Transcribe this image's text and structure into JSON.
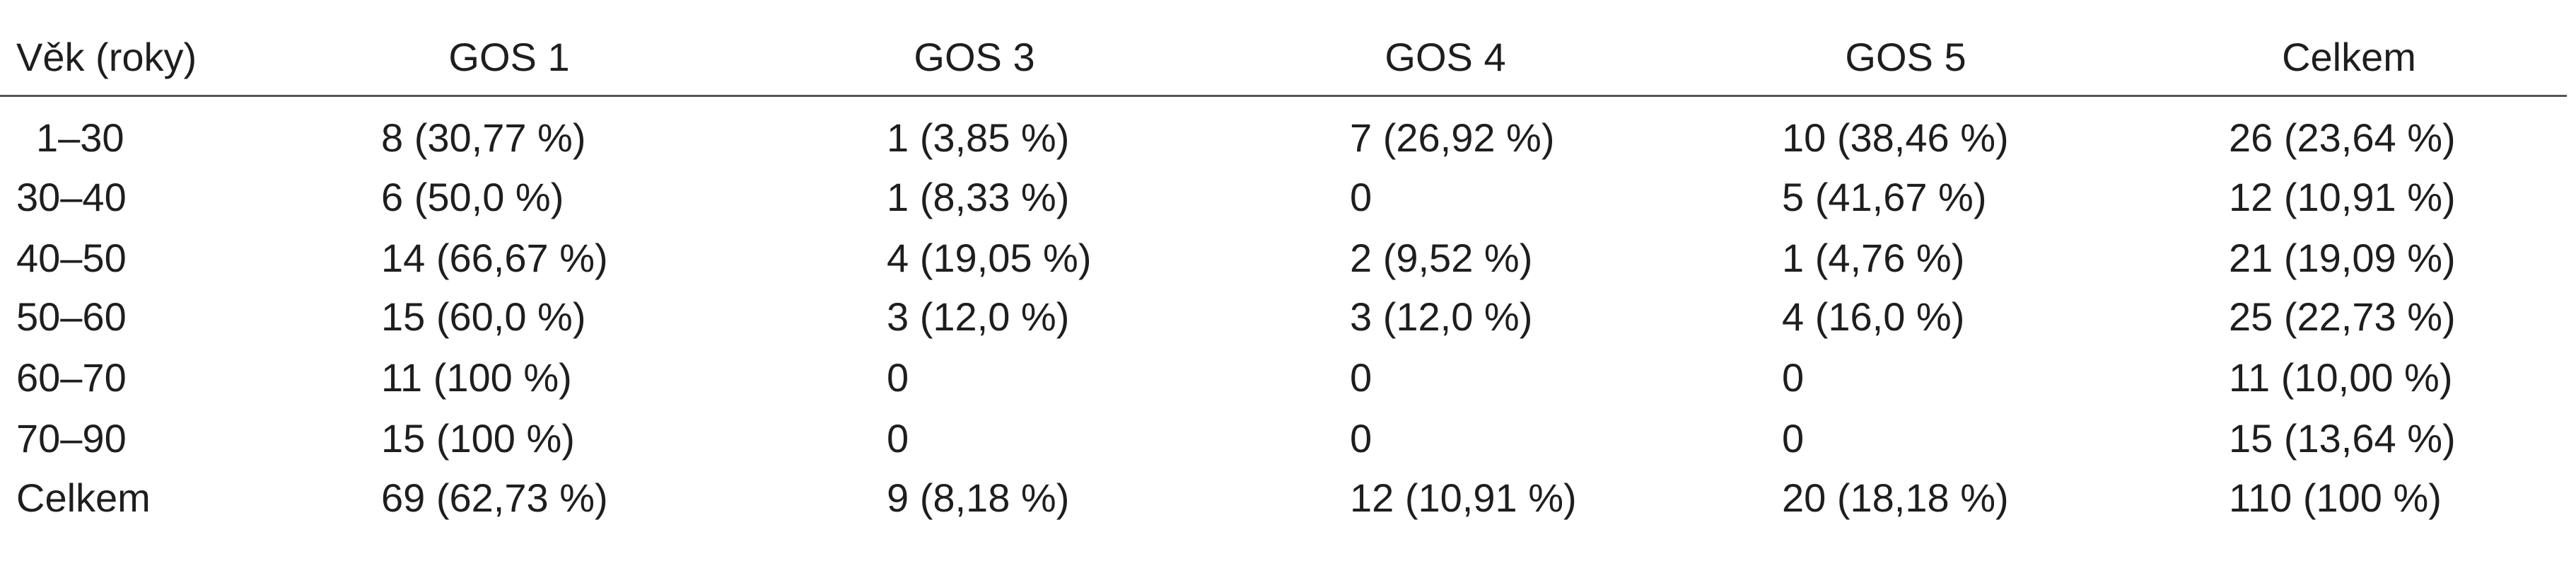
{
  "table": {
    "header": [
      "Věk (roky)",
      "GOS 1",
      "GOS 3",
      "GOS 4",
      "GOS 5",
      "Celkem"
    ],
    "rows": [
      [
        "1–30",
        "8 (30,77 %)",
        "1 (3,85 %)",
        "7 (26,92 %)",
        "10 (38,46 %)",
        "26 (23,64 %)"
      ],
      [
        "30–40",
        "6 (50,0 %)",
        "1 (8,33 %)",
        "0",
        "5 (41,67 %)",
        "12 (10,91 %)"
      ],
      [
        "40–50",
        "14 (66,67 %)",
        "4 (19,05 %)",
        "2 (9,52 %)",
        "1 (4,76 %)",
        "21 (19,09 %)"
      ],
      [
        "50–60",
        "15 (60,0 %)",
        "3 (12,0 %)",
        "3 (12,0 %)",
        "4 (16,0 %)",
        "25 (22,73 %)"
      ],
      [
        "60–70",
        "11 (100 %)",
        "0",
        "0",
        "0",
        "11 (10,00 %)"
      ],
      [
        "70–90",
        "15 (100 %)",
        "0",
        "0",
        "0",
        "15 (13,64 %)"
      ],
      [
        "Celkem",
        "69 (62,73 %)",
        "9 (8,18 %)",
        "12 (10,91 %)",
        "20 (18,18 %)",
        "110 (100 %)"
      ]
    ]
  }
}
